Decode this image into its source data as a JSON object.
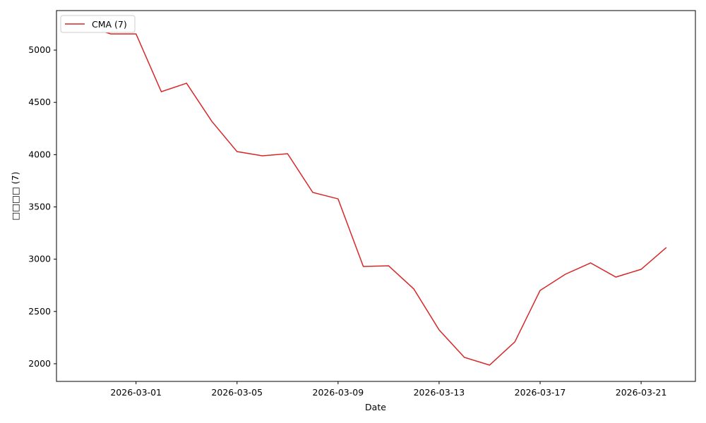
{
  "chart_data": {
    "type": "line",
    "x_label": "Date",
    "y_label": "□□□□ (7)",
    "x": [
      "2026-02-27",
      "2026-02-28",
      "2026-03-01",
      "2026-03-02",
      "2026-03-03",
      "2026-03-04",
      "2026-03-05",
      "2026-03-06",
      "2026-03-07",
      "2026-03-08",
      "2026-03-09",
      "2026-03-10",
      "2026-03-11",
      "2026-03-12",
      "2026-03-13",
      "2026-03-14",
      "2026-03-15",
      "2026-03-16",
      "2026-03-17",
      "2026-03-18",
      "2026-03-19",
      "2026-03-20",
      "2026-03-21",
      "2026-03-22"
    ],
    "series": [
      {
        "name": "CMA (7)",
        "color": "#d62728",
        "values": [
          5229,
          5155,
          5155,
          4602,
          4683,
          4319,
          4029,
          3989,
          4009,
          3638,
          3577,
          2930,
          2937,
          2715,
          2324,
          2061,
          1987,
          2209,
          2701,
          2856,
          2964,
          2829,
          2903,
          3112
        ]
      }
    ],
    "ylim": [
      1831,
      5378
    ],
    "yticks": [
      2000,
      2500,
      3000,
      3500,
      4000,
      4500,
      5000
    ],
    "xticks": [
      "2026-03-01",
      "2026-03-05",
      "2026-03-09",
      "2026-03-13",
      "2026-03-17",
      "2026-03-21"
    ],
    "legend": "upper left",
    "grid": false
  }
}
